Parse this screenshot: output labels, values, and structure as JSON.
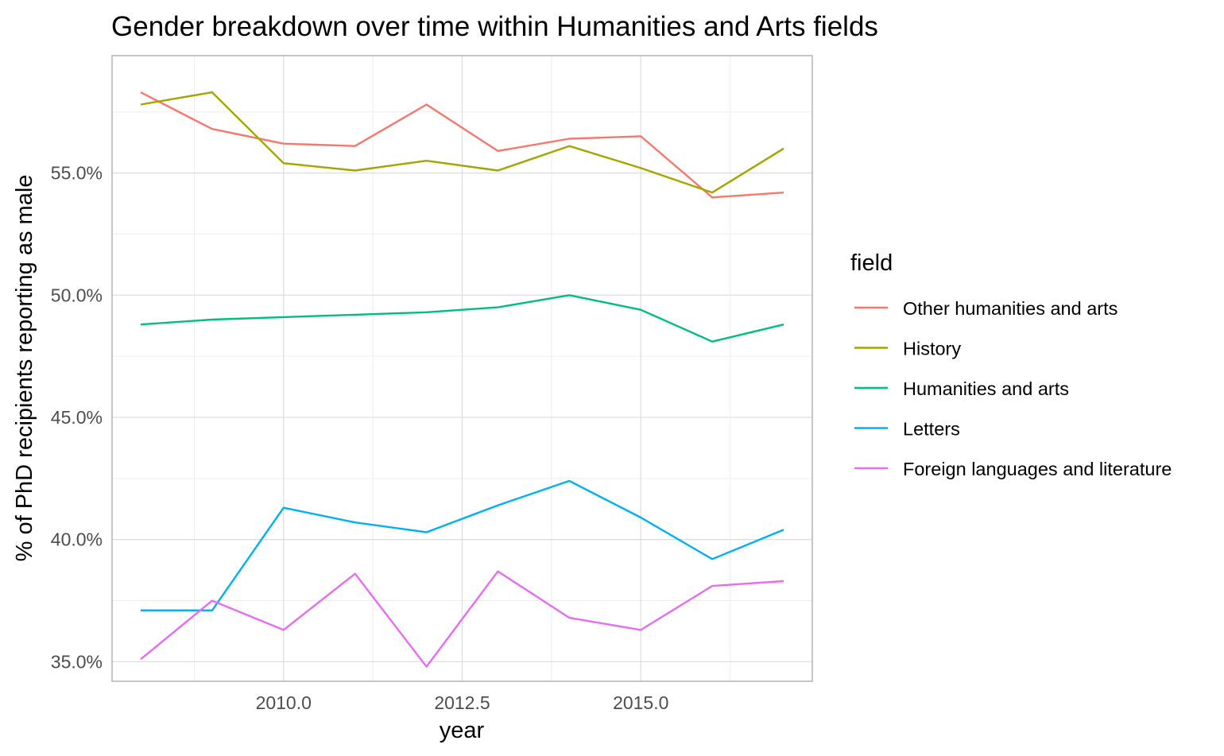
{
  "chart_data": {
    "type": "line",
    "title": "Gender breakdown over time within Humanities and Arts fields",
    "xlabel": "year",
    "ylabel": "% of PhD recipients reporting as male",
    "xlim": [
      2007.6,
      2017.4
    ],
    "ylim": [
      0.342,
      0.598
    ],
    "x_ticks": [
      2010.0,
      2012.5,
      2015.0
    ],
    "x_tick_labels": [
      "2010.0",
      "2012.5",
      "2015.0"
    ],
    "y_ticks": [
      0.35,
      0.4,
      0.45,
      0.5,
      0.55
    ],
    "y_tick_labels": [
      "35.0%",
      "40.0%",
      "45.0%",
      "50.0%",
      "55.0%"
    ],
    "grid": true,
    "legend": {
      "title": "field",
      "position": "right"
    },
    "x": [
      2008,
      2009,
      2010,
      2011,
      2012,
      2013,
      2014,
      2015,
      2016,
      2017
    ],
    "series": [
      {
        "name": "Other humanities and arts",
        "color": "#F8766D",
        "values": [
          0.583,
          0.568,
          0.562,
          0.561,
          0.578,
          0.559,
          0.564,
          0.565,
          0.54,
          0.542
        ]
      },
      {
        "name": "History",
        "color": "#A3A500",
        "values": [
          0.578,
          0.583,
          0.554,
          0.551,
          0.555,
          0.551,
          0.561,
          0.552,
          0.542,
          0.56
        ]
      },
      {
        "name": "Humanities and arts",
        "color": "#00BF7D",
        "values": [
          0.488,
          0.49,
          0.491,
          0.492,
          0.493,
          0.495,
          0.5,
          0.494,
          0.481,
          0.488
        ]
      },
      {
        "name": "Letters",
        "color": "#00B0F6",
        "values": [
          0.371,
          0.371,
          0.413,
          0.407,
          0.403,
          0.414,
          0.424,
          0.409,
          0.392,
          0.404
        ]
      },
      {
        "name": "Foreign languages and literature",
        "color": "#E76BF3",
        "values": [
          0.351,
          0.375,
          0.363,
          0.386,
          0.348,
          0.387,
          0.368,
          0.363,
          0.381,
          0.383
        ]
      }
    ]
  }
}
